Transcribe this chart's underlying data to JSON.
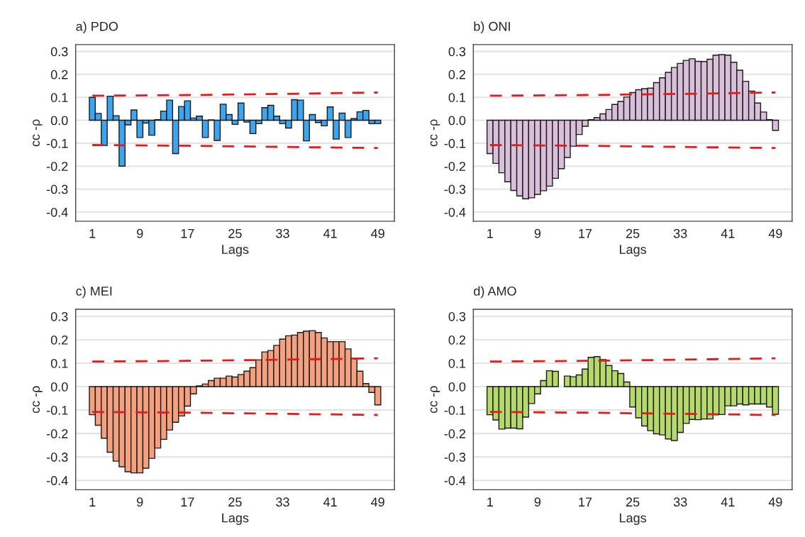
{
  "chart_data": [
    {
      "type": "bar",
      "title": "a) PDO",
      "xlabel": "Lags",
      "ylabel": "cc -ρ",
      "xlim": [
        -1.8,
        51.8
      ],
      "xticks": [
        1,
        9,
        17,
        25,
        33,
        41,
        49
      ],
      "ylim": [
        -0.44,
        0.33
      ],
      "yticks": [
        {
          "value": -0.4,
          "label": "-0.4"
        },
        {
          "value": -0.3,
          "label": "-0.3"
        },
        {
          "value": -0.2,
          "label": "-0.2"
        },
        {
          "value": -0.1,
          "label": "-0.1"
        },
        {
          "value": 0,
          "label": "0.0"
        },
        {
          "value": 0.1,
          "label": "0.1"
        },
        {
          "value": 0.2,
          "label": "0.2"
        },
        {
          "value": 0.3,
          "label": "0.3"
        }
      ],
      "grid": "y",
      "legend": false,
      "series": [
        {
          "color": "#3da5f0",
          "x": [
            1,
            2,
            3,
            4,
            5,
            6,
            7,
            8,
            9,
            10,
            11,
            12,
            13,
            14,
            15,
            16,
            17,
            18,
            19,
            20,
            21,
            22,
            23,
            24,
            25,
            26,
            27,
            28,
            29,
            30,
            31,
            32,
            33,
            34,
            35,
            36,
            37,
            38,
            39,
            40,
            41,
            42,
            43,
            44,
            45,
            46,
            47,
            48,
            49
          ],
          "values": [
            0.1,
            0.03,
            -0.11,
            0.105,
            0.02,
            -0.2,
            -0.02,
            0.045,
            -0.075,
            -0.012,
            -0.065,
            0.003,
            0.04,
            0.088,
            -0.145,
            0.06,
            0.085,
            0.01,
            0.018,
            -0.075,
            0.002,
            -0.088,
            0.07,
            0.025,
            -0.018,
            0.075,
            -0.008,
            -0.058,
            -0.015,
            0.055,
            0.065,
            0.018,
            -0.015,
            -0.034,
            0.09,
            0.088,
            -0.09,
            0.025,
            -0.01,
            -0.024,
            0.058,
            -0.082,
            0.031,
            -0.075,
            0.007,
            0.037,
            0.043,
            -0.015,
            -0.015
          ]
        },
        {
          "type": "line",
          "color": "#e41a1c",
          "line_style": "dashed",
          "x": [
            1,
            17,
            33,
            49
          ],
          "values": [
            0.107,
            0.11,
            0.115,
            0.121
          ]
        },
        {
          "type": "line",
          "color": "#e41a1c",
          "line_style": "dashed",
          "x": [
            1,
            17,
            33,
            49
          ],
          "values": [
            -0.108,
            -0.111,
            -0.116,
            -0.121
          ]
        }
      ]
    },
    {
      "type": "bar",
      "title": "b) ONI",
      "xlabel": "Lags",
      "ylabel": "cc -ρ",
      "xlim": [
        -1.8,
        51.8
      ],
      "xticks": [
        1,
        9,
        17,
        25,
        33,
        41,
        49
      ],
      "ylim": [
        -0.44,
        0.33
      ],
      "yticks": [
        {
          "value": -0.4,
          "label": "-0.4"
        },
        {
          "value": -0.3,
          "label": "-0.3"
        },
        {
          "value": -0.2,
          "label": "-0.2"
        },
        {
          "value": -0.1,
          "label": "-0.1"
        },
        {
          "value": 0,
          "label": "0.0"
        },
        {
          "value": 0.1,
          "label": "0.1"
        },
        {
          "value": 0.2,
          "label": "0.2"
        },
        {
          "value": 0.3,
          "label": "0.3"
        }
      ],
      "grid": "y",
      "legend": false,
      "series": [
        {
          "color": "#d9bfd9",
          "x": [
            1,
            2,
            3,
            4,
            5,
            6,
            7,
            8,
            9,
            10,
            11,
            12,
            13,
            14,
            15,
            16,
            17,
            18,
            19,
            20,
            21,
            22,
            23,
            24,
            25,
            26,
            27,
            28,
            29,
            30,
            31,
            32,
            33,
            34,
            35,
            36,
            37,
            38,
            39,
            40,
            41,
            42,
            43,
            44,
            45,
            46,
            47,
            48,
            49
          ],
          "values": [
            -0.145,
            -0.188,
            -0.229,
            -0.268,
            -0.306,
            -0.33,
            -0.342,
            -0.338,
            -0.323,
            -0.307,
            -0.287,
            -0.253,
            -0.211,
            -0.162,
            -0.113,
            -0.062,
            -0.026,
            0.003,
            0.012,
            0.028,
            0.047,
            0.069,
            0.082,
            0.101,
            0.121,
            0.133,
            0.138,
            0.14,
            0.164,
            0.185,
            0.209,
            0.23,
            0.248,
            0.261,
            0.268,
            0.257,
            0.256,
            0.266,
            0.284,
            0.286,
            0.284,
            0.253,
            0.218,
            0.17,
            0.127,
            0.075,
            0.036,
            0.003,
            -0.044
          ]
        },
        {
          "type": "line",
          "color": "#e41a1c",
          "line_style": "dashed",
          "x": [
            1,
            17,
            33,
            49
          ],
          "values": [
            0.107,
            0.11,
            0.115,
            0.121
          ]
        },
        {
          "type": "line",
          "color": "#e41a1c",
          "line_style": "dashed",
          "x": [
            1,
            17,
            33,
            49
          ],
          "values": [
            -0.108,
            -0.111,
            -0.116,
            -0.121
          ]
        }
      ]
    },
    {
      "type": "bar",
      "title": "c) MEI",
      "xlabel": "Lags",
      "ylabel": "cc -ρ",
      "xlim": [
        -1.8,
        51.8
      ],
      "xticks": [
        1,
        9,
        17,
        25,
        33,
        41,
        49
      ],
      "ylim": [
        -0.44,
        0.33
      ],
      "yticks": [
        {
          "value": -0.4,
          "label": "-0.4"
        },
        {
          "value": -0.3,
          "label": "-0.3"
        },
        {
          "value": -0.2,
          "label": "-0.2"
        },
        {
          "value": -0.1,
          "label": "-0.1"
        },
        {
          "value": 0,
          "label": "0.0"
        },
        {
          "value": 0.1,
          "label": "0.1"
        },
        {
          "value": 0.2,
          "label": "0.2"
        },
        {
          "value": 0.3,
          "label": "0.3"
        }
      ],
      "grid": "y",
      "legend": false,
      "series": [
        {
          "color": "#f5a07e",
          "x": [
            1,
            2,
            3,
            4,
            5,
            6,
            7,
            8,
            9,
            10,
            11,
            12,
            13,
            14,
            15,
            16,
            17,
            18,
            19,
            20,
            21,
            22,
            23,
            24,
            25,
            26,
            27,
            28,
            29,
            30,
            31,
            32,
            33,
            34,
            35,
            36,
            37,
            38,
            39,
            40,
            41,
            42,
            43,
            44,
            45,
            46,
            47,
            48,
            49
          ],
          "values": [
            -0.12,
            -0.165,
            -0.22,
            -0.28,
            -0.318,
            -0.342,
            -0.363,
            -0.368,
            -0.368,
            -0.348,
            -0.306,
            -0.262,
            -0.225,
            -0.185,
            -0.152,
            -0.125,
            -0.083,
            -0.031,
            0.003,
            0.011,
            0.026,
            0.036,
            0.036,
            0.045,
            0.041,
            0.052,
            0.066,
            0.081,
            0.114,
            0.148,
            0.154,
            0.176,
            0.203,
            0.217,
            0.22,
            0.231,
            0.237,
            0.239,
            0.231,
            0.208,
            0.192,
            0.192,
            0.192,
            0.161,
            0.121,
            0.066,
            0.013,
            -0.025,
            -0.078
          ]
        },
        {
          "type": "line",
          "color": "#e41a1c",
          "line_style": "dashed",
          "x": [
            1,
            17,
            33,
            49
          ],
          "values": [
            0.107,
            0.11,
            0.115,
            0.121
          ]
        },
        {
          "type": "line",
          "color": "#e41a1c",
          "line_style": "dashed",
          "x": [
            1,
            17,
            33,
            49
          ],
          "values": [
            -0.108,
            -0.111,
            -0.116,
            -0.121
          ]
        }
      ]
    },
    {
      "type": "bar",
      "title": "d) AMO",
      "xlabel": "Lags",
      "ylabel": "cc -ρ",
      "xlim": [
        -1.8,
        51.8
      ],
      "xticks": [
        1,
        9,
        17,
        25,
        33,
        41,
        49
      ],
      "ylim": [
        -0.44,
        0.33
      ],
      "yticks": [
        {
          "value": -0.4,
          "label": "-0.4"
        },
        {
          "value": -0.3,
          "label": "-0.3"
        },
        {
          "value": -0.2,
          "label": "-0.2"
        },
        {
          "value": -0.1,
          "label": "-0.1"
        },
        {
          "value": 0,
          "label": "0.0"
        },
        {
          "value": 0.1,
          "label": "0.1"
        },
        {
          "value": 0.2,
          "label": "0.2"
        },
        {
          "value": 0.3,
          "label": "0.3"
        }
      ],
      "grid": "y",
      "legend": false,
      "series": [
        {
          "color": "#b5d96a",
          "x": [
            1,
            2,
            3,
            4,
            5,
            6,
            7,
            8,
            9,
            10,
            11,
            12,
            13,
            14,
            15,
            16,
            17,
            18,
            19,
            20,
            21,
            22,
            23,
            24,
            25,
            26,
            27,
            28,
            29,
            30,
            31,
            32,
            33,
            34,
            35,
            36,
            37,
            38,
            39,
            40,
            41,
            42,
            43,
            44,
            45,
            46,
            47,
            48,
            49
          ],
          "values": [
            -0.12,
            -0.142,
            -0.181,
            -0.177,
            -0.177,
            -0.18,
            -0.13,
            -0.072,
            -0.031,
            0.026,
            0.068,
            0.065,
            null,
            0.045,
            0.042,
            0.05,
            0.075,
            0.125,
            0.128,
            0.115,
            0.09,
            0.068,
            0.056,
            0.02,
            -0.087,
            -0.133,
            -0.168,
            -0.188,
            -0.201,
            -0.206,
            -0.223,
            -0.23,
            -0.195,
            -0.157,
            -0.14,
            -0.141,
            -0.138,
            -0.138,
            -0.12,
            -0.119,
            -0.082,
            -0.082,
            -0.074,
            -0.078,
            -0.074,
            -0.074,
            -0.074,
            -0.087,
            -0.118
          ]
        },
        {
          "type": "line",
          "color": "#e41a1c",
          "line_style": "dashed",
          "x": [
            1,
            17,
            33,
            49
          ],
          "values": [
            0.107,
            0.11,
            0.115,
            0.121
          ]
        },
        {
          "type": "line",
          "color": "#e41a1c",
          "line_style": "dashed",
          "x": [
            1,
            17,
            33,
            49
          ],
          "values": [
            -0.108,
            -0.111,
            -0.116,
            -0.121
          ]
        }
      ]
    }
  ]
}
